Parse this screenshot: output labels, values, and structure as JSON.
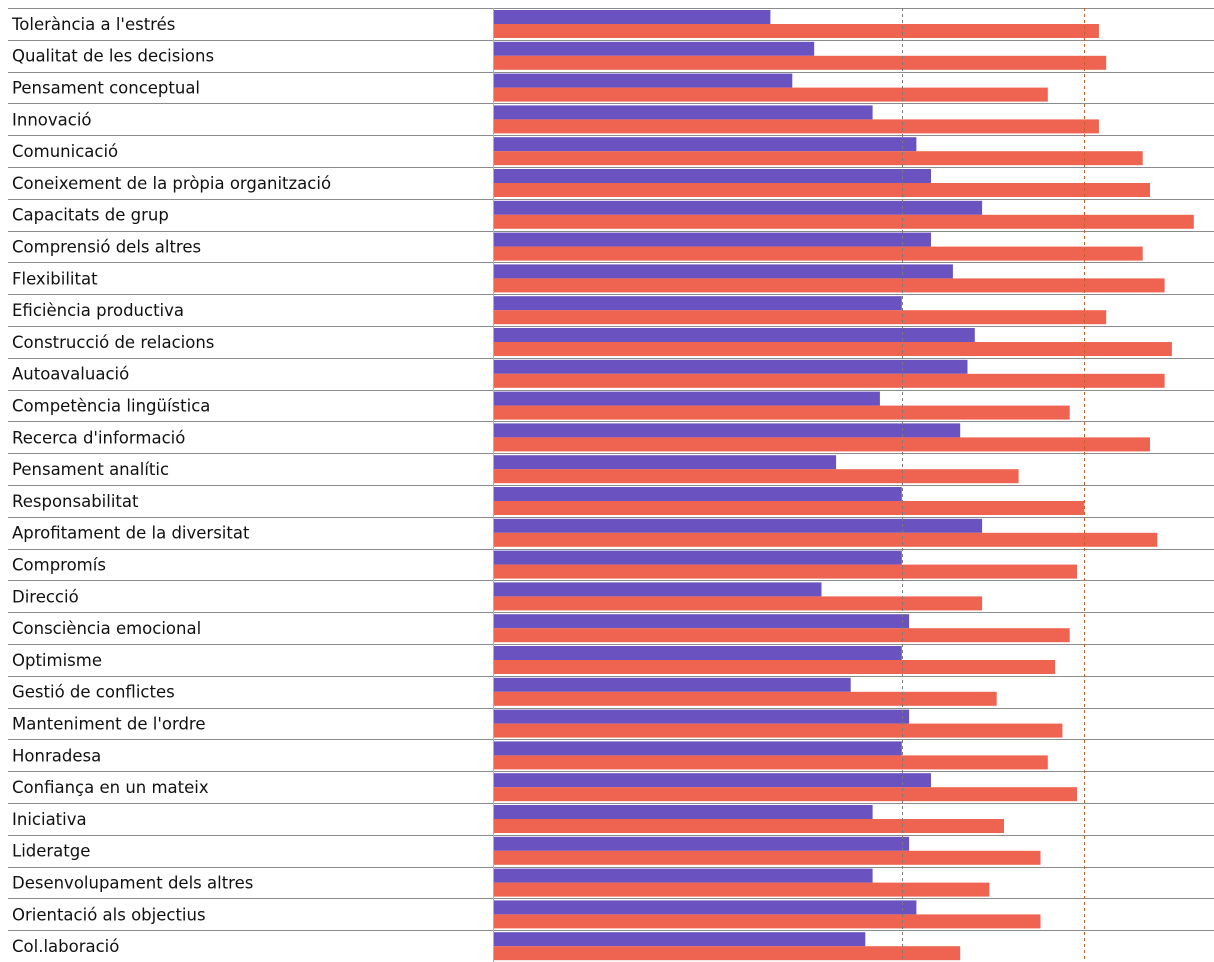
{
  "chart_data": {
    "type": "bar",
    "orientation": "horizontal",
    "grid": false,
    "legend": "none",
    "xlim": [
      0,
      10
    ],
    "reference_lines": [
      {
        "value": 5.6,
        "color": "#7a7a7a"
      },
      {
        "value": 8.1,
        "color": "#c0602c"
      }
    ],
    "categories": [
      "Tolerància a l'estrés",
      "Qualitat de les decisions",
      "Pensament conceptual",
      "Innovació",
      "Comunicació",
      "Coneixement de la pròpia organització",
      "Capacitats de grup",
      "Comprensió dels altres",
      "Flexibilitat",
      "Eficiència productiva",
      "Construcció de relacions",
      "Autoavaluació",
      "Competència lingüística",
      "Recerca d'informació",
      "Pensament analític",
      "Responsabilitat",
      "Aprofitament de la diversitat",
      "Compromís",
      "Direcció",
      "Consciència emocional",
      "Optimisme",
      "Gestió de conflictes",
      "Manteniment de l'ordre",
      "Honradesa",
      "Confiança en un mateix",
      "Iniciativa",
      "Lideratge",
      "Desenvolupament dels altres",
      "Orientació als objectius",
      "Col.laboració"
    ],
    "series": [
      {
        "color": "#6a52c0",
        "values": [
          3.8,
          4.4,
          4.1,
          5.2,
          5.8,
          6.0,
          6.7,
          6.0,
          6.3,
          5.6,
          6.6,
          6.5,
          5.3,
          6.4,
          4.7,
          5.6,
          6.7,
          5.6,
          4.5,
          5.7,
          5.6,
          4.9,
          5.7,
          5.6,
          6.0,
          5.2,
          5.7,
          5.2,
          5.8,
          5.1
        ]
      },
      {
        "color": "#ee6450",
        "values": [
          8.3,
          8.4,
          7.6,
          8.3,
          8.9,
          9.0,
          9.6,
          8.9,
          9.2,
          8.4,
          9.3,
          9.2,
          7.9,
          9.0,
          7.2,
          8.1,
          9.1,
          8.0,
          6.7,
          7.9,
          7.7,
          6.9,
          7.8,
          7.6,
          8.0,
          7.0,
          7.5,
          6.8,
          7.5,
          6.4
        ]
      }
    ]
  }
}
